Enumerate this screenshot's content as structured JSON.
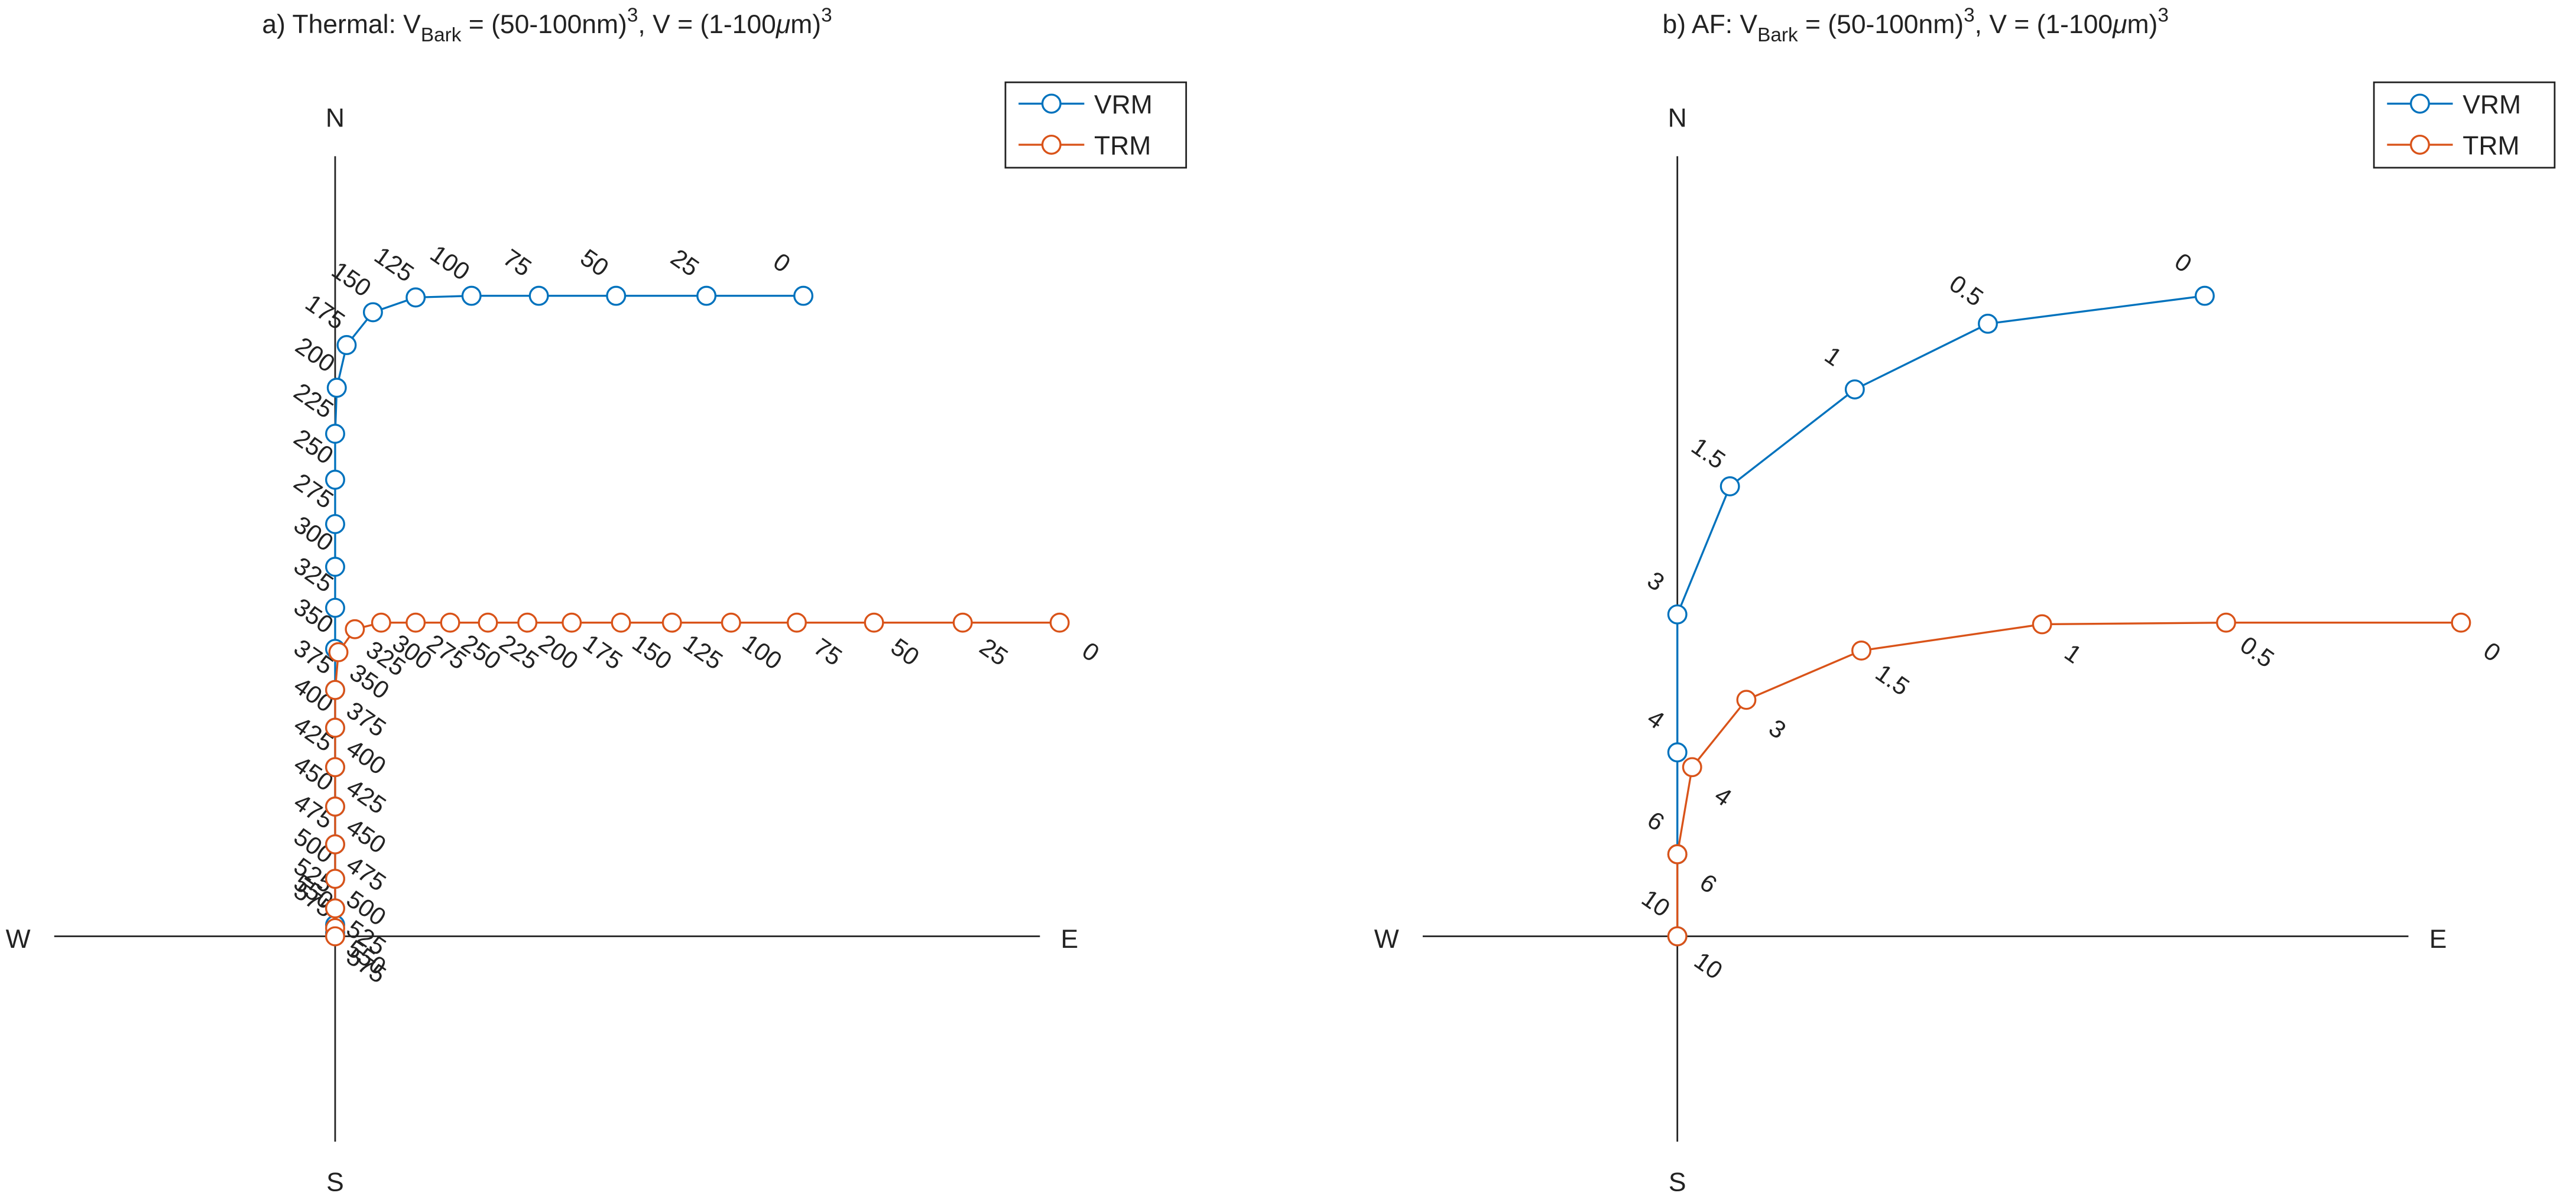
{
  "chart_data": [
    {
      "type": "line",
      "title_parts": [
        {
          "text": "a) Thermal: V"
        },
        {
          "text": "Bark",
          "style": "sub"
        },
        {
          "text": " = (50-100nm)"
        },
        {
          "text": "3",
          "style": "sup"
        },
        {
          "text": ", V = (1-100"
        },
        {
          "text": "μ",
          "style": "italic"
        },
        {
          "text": "m)"
        },
        {
          "text": "3",
          "style": "sup"
        }
      ],
      "xlim": [
        -1.71,
        4.29
      ],
      "ylim": [
        -1.25,
        4.75
      ],
      "axis_labels": {
        "north": "N",
        "south": "S",
        "east": "E",
        "west": "W"
      },
      "legend": "upper right",
      "series": [
        {
          "name": "VRM",
          "color": "#0072bd",
          "x": [
            2.85,
            2.26,
            1.71,
            1.24,
            0.83,
            0.49,
            0.23,
            0.07,
            0.01,
            0,
            0,
            0,
            0,
            0,
            0,
            0,
            0,
            0,
            0,
            0,
            0,
            0,
            0,
            0
          ],
          "y": [
            3.9,
            3.9,
            3.9,
            3.9,
            3.9,
            3.89,
            3.8,
            3.6,
            3.34,
            3.06,
            2.78,
            2.51,
            2.25,
            2.0,
            1.75,
            1.5,
            1.27,
            1.03,
            0.79,
            0.56,
            0.35,
            0.17,
            0.07,
            0.02
          ],
          "labels": [
            0,
            25,
            50,
            75,
            100,
            125,
            150,
            175,
            200,
            225,
            250,
            275,
            300,
            325,
            350,
            375,
            400,
            425,
            450,
            475,
            500,
            525,
            550,
            575
          ]
        },
        {
          "name": "TRM",
          "color": "#d95319",
          "x": [
            4.41,
            3.82,
            3.28,
            2.81,
            2.41,
            2.05,
            1.74,
            1.44,
            1.17,
            0.93,
            0.7,
            0.49,
            0.28,
            0.12,
            0.02,
            0,
            0,
            0,
            0,
            0,
            0,
            0,
            0,
            0
          ],
          "y": [
            1.91,
            1.91,
            1.91,
            1.91,
            1.91,
            1.91,
            1.91,
            1.91,
            1.91,
            1.91,
            1.91,
            1.91,
            1.91,
            1.87,
            1.73,
            1.5,
            1.27,
            1.03,
            0.79,
            0.56,
            0.35,
            0.17,
            0.05,
            0.0
          ],
          "labels": [
            0,
            25,
            50,
            75,
            100,
            125,
            150,
            175,
            200,
            225,
            250,
            275,
            300,
            325,
            350,
            375,
            400,
            425,
            450,
            475,
            500,
            525,
            550,
            575
          ]
        }
      ]
    },
    {
      "type": "line",
      "title_parts": [
        {
          "text": "b) AF: V"
        },
        {
          "text": "Bark",
          "style": "sub"
        },
        {
          "text": " = (50-100nm)"
        },
        {
          "text": "3",
          "style": "sup"
        },
        {
          "text": ", V = (1-100"
        },
        {
          "text": "μ",
          "style": "italic"
        },
        {
          "text": "m)"
        },
        {
          "text": "3",
          "style": "sup"
        }
      ],
      "xlim": [
        -1.55,
        4.45
      ],
      "ylim": [
        -1.25,
        4.75
      ],
      "axis_labels": {
        "north": "N",
        "south": "S",
        "east": "E",
        "west": "W"
      },
      "legend": "upper right",
      "series": [
        {
          "name": "VRM",
          "color": "#0072bd",
          "x": [
            3.21,
            1.89,
            1.08,
            0.32,
            0,
            0,
            0,
            0
          ],
          "y": [
            3.9,
            3.73,
            3.33,
            2.74,
            1.96,
            1.12,
            0.5,
            0
          ],
          "labels": [
            0,
            0.5,
            1,
            1.5,
            3,
            4,
            6,
            10
          ]
        },
        {
          "name": "TRM",
          "color": "#d95319",
          "x": [
            4.77,
            3.34,
            2.22,
            1.12,
            0.42,
            0.09,
            0,
            0
          ],
          "y": [
            1.91,
            1.91,
            1.9,
            1.74,
            1.44,
            1.03,
            0.5,
            0
          ],
          "labels": [
            0,
            0.5,
            1,
            1.5,
            3,
            4,
            6,
            10
          ]
        }
      ]
    }
  ]
}
